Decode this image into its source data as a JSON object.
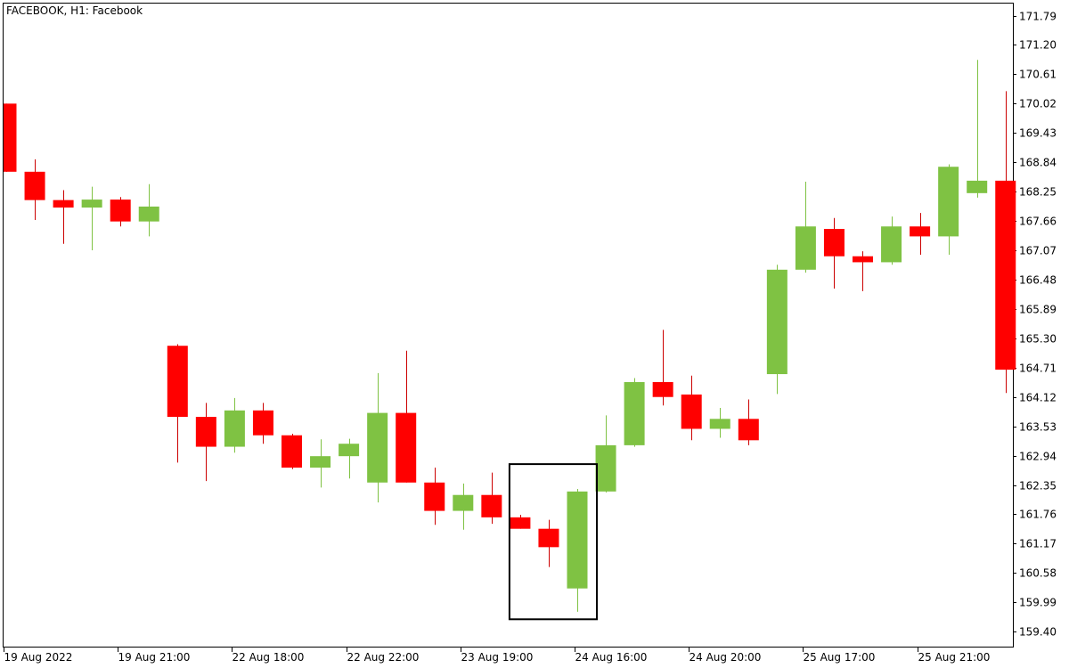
{
  "chart_data": {
    "type": "candlestick",
    "title": "FACEBOOK, H1:  Facebook",
    "ylim": [
      159.1,
      172.05
    ],
    "y_ticks": [
      "171.79",
      "171.20",
      "170.61",
      "170.02",
      "169.43",
      "168.84",
      "168.25",
      "167.66",
      "167.07",
      "166.48",
      "165.89",
      "165.30",
      "164.71",
      "164.12",
      "163.53",
      "162.94",
      "162.35",
      "161.76",
      "161.17",
      "160.58",
      "159.99",
      "159.40"
    ],
    "x_ticks": [
      {
        "label": "19 Aug 2022",
        "index": 0
      },
      {
        "label": "19 Aug 21:00",
        "index": 4
      },
      {
        "label": "22 Aug 18:00",
        "index": 8
      },
      {
        "label": "22 Aug 22:00",
        "index": 12
      },
      {
        "label": "23 Aug 19:00",
        "index": 16
      },
      {
        "label": "24 Aug 16:00",
        "index": 20
      },
      {
        "label": "24 Aug 20:00",
        "index": 24
      },
      {
        "label": "25 Aug 17:00",
        "index": 28
      },
      {
        "label": "25 Aug 21:00",
        "index": 32
      }
    ],
    "colors": {
      "up": "#7fc243",
      "down": "#ff0000",
      "wick_up": "#7fc243",
      "wick_down": "#cc0000"
    },
    "candles": [
      {
        "open": 170.02,
        "high": 170.02,
        "low": 168.65,
        "close": 168.65
      },
      {
        "open": 168.65,
        "high": 168.9,
        "low": 167.68,
        "close": 168.08
      },
      {
        "open": 168.08,
        "high": 168.28,
        "low": 167.2,
        "close": 167.93
      },
      {
        "open": 167.93,
        "high": 168.35,
        "low": 167.07,
        "close": 168.09
      },
      {
        "open": 168.09,
        "high": 168.14,
        "low": 167.55,
        "close": 167.65
      },
      {
        "open": 167.65,
        "high": 168.4,
        "low": 167.35,
        "close": 167.95
      },
      {
        "open": 165.15,
        "high": 165.18,
        "low": 162.8,
        "close": 163.72
      },
      {
        "open": 163.72,
        "high": 164.0,
        "low": 162.43,
        "close": 163.12
      },
      {
        "open": 163.12,
        "high": 164.1,
        "low": 163.0,
        "close": 163.85
      },
      {
        "open": 163.85,
        "high": 164.0,
        "low": 163.18,
        "close": 163.35
      },
      {
        "open": 163.35,
        "high": 163.38,
        "low": 162.67,
        "close": 162.7
      },
      {
        "open": 162.7,
        "high": 163.27,
        "low": 162.3,
        "close": 162.93
      },
      {
        "open": 162.93,
        "high": 163.28,
        "low": 162.48,
        "close": 163.18
      },
      {
        "open": 162.4,
        "high": 164.6,
        "low": 162.0,
        "close": 163.8
      },
      {
        "open": 163.8,
        "high": 165.05,
        "low": 162.4,
        "close": 162.4
      },
      {
        "open": 162.4,
        "high": 162.7,
        "low": 161.55,
        "close": 161.83
      },
      {
        "open": 161.83,
        "high": 162.38,
        "low": 161.45,
        "close": 162.15
      },
      {
        "open": 162.15,
        "high": 162.6,
        "low": 161.57,
        "close": 161.7
      },
      {
        "open": 161.7,
        "high": 161.75,
        "low": 161.47,
        "close": 161.47
      },
      {
        "open": 161.47,
        "high": 161.65,
        "low": 160.7,
        "close": 161.1
      },
      {
        "open": 160.27,
        "high": 162.27,
        "low": 159.8,
        "close": 162.22
      },
      {
        "open": 162.22,
        "high": 163.75,
        "low": 162.2,
        "close": 163.15
      },
      {
        "open": 163.15,
        "high": 164.5,
        "low": 163.12,
        "close": 164.42
      },
      {
        "open": 164.42,
        "high": 165.47,
        "low": 163.95,
        "close": 164.12
      },
      {
        "open": 164.17,
        "high": 164.55,
        "low": 163.25,
        "close": 163.48
      },
      {
        "open": 163.48,
        "high": 163.9,
        "low": 163.3,
        "close": 163.68
      },
      {
        "open": 163.68,
        "high": 164.07,
        "low": 163.15,
        "close": 163.25
      },
      {
        "open": 164.58,
        "high": 166.78,
        "low": 164.18,
        "close": 166.68
      },
      {
        "open": 166.68,
        "high": 168.45,
        "low": 166.62,
        "close": 167.55
      },
      {
        "open": 167.5,
        "high": 167.72,
        "low": 166.3,
        "close": 166.95
      },
      {
        "open": 166.95,
        "high": 167.05,
        "low": 166.25,
        "close": 166.83
      },
      {
        "open": 166.83,
        "high": 167.75,
        "low": 166.78,
        "close": 167.55
      },
      {
        "open": 167.55,
        "high": 167.82,
        "low": 166.98,
        "close": 167.35
      },
      {
        "open": 167.35,
        "high": 168.8,
        "low": 166.98,
        "close": 168.75
      },
      {
        "open": 168.22,
        "high": 170.9,
        "low": 168.13,
        "close": 168.47
      },
      {
        "open": 168.47,
        "high": 170.27,
        "low": 164.2,
        "close": 164.67
      }
    ],
    "annotations": [
      {
        "type": "rectangle",
        "from_index": 18,
        "to_index": 20,
        "y_top": 162.77,
        "y_bottom": 159.65
      }
    ]
  }
}
